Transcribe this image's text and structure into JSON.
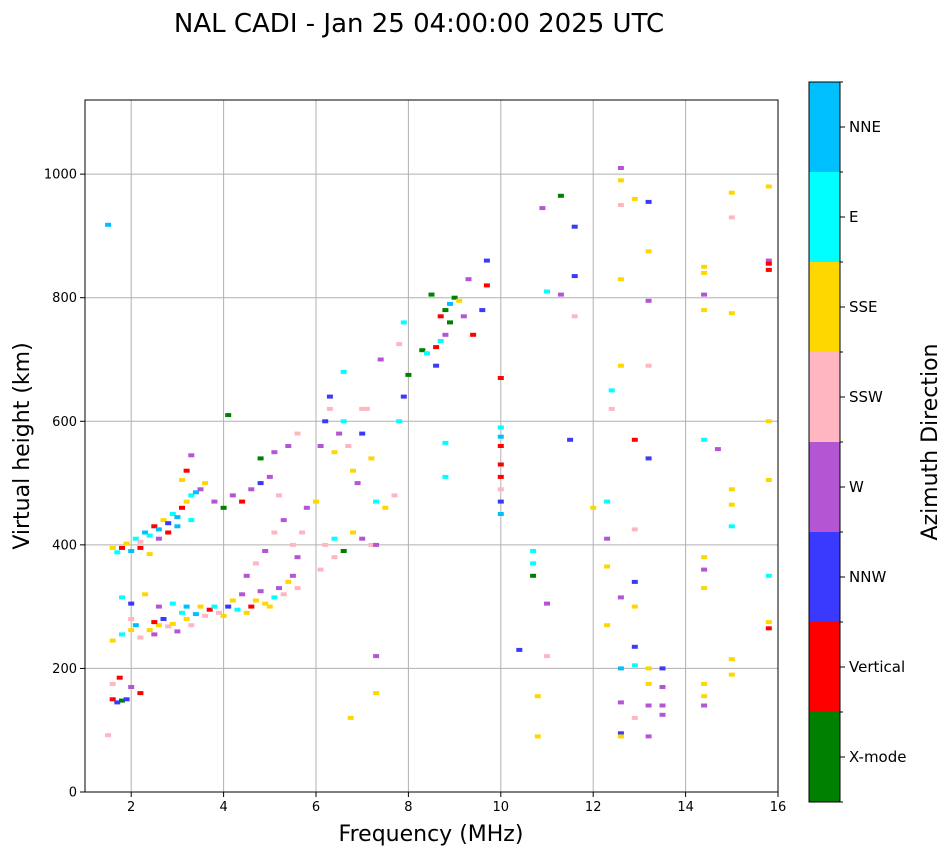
{
  "chart_data": {
    "type": "scatter",
    "title": "NAL CADI - Jan 25 04:00:00 2025 UTC",
    "xlabel": "Frequency (MHz)",
    "ylabel": "Virtual height (km)",
    "xlim": [
      1,
      16
    ],
    "ylim": [
      0,
      1120
    ],
    "xticks": [
      2,
      4,
      6,
      8,
      10,
      12,
      14,
      16
    ],
    "yticks": [
      0,
      200,
      400,
      600,
      800,
      1000
    ],
    "grid": true,
    "colorbar": {
      "label": "Azimuth Direction",
      "categories": [
        {
          "name": "X-mode",
          "color": "#008000"
        },
        {
          "name": "Vertical",
          "color": "#ff0000"
        },
        {
          "name": "NNW",
          "color": "#3a3aff"
        },
        {
          "name": "W",
          "color": "#b455d4"
        },
        {
          "name": "SSW",
          "color": "#ffb6c1"
        },
        {
          "name": "SSE",
          "color": "#ffd700"
        },
        {
          "name": "E",
          "color": "#00ffff"
        },
        {
          "name": "NNE",
          "color": "#00bfff"
        }
      ]
    },
    "points": [
      [
        1.5,
        918,
        "NNE"
      ],
      [
        1.5,
        92,
        "SSW"
      ],
      [
        1.6,
        175,
        "SSW"
      ],
      [
        1.6,
        150,
        "Vertical"
      ],
      [
        1.7,
        145,
        "NNW"
      ],
      [
        1.75,
        185,
        "Vertical"
      ],
      [
        1.8,
        148,
        "X-mode"
      ],
      [
        1.9,
        150,
        "NNW"
      ],
      [
        2.0,
        170,
        "W"
      ],
      [
        2.2,
        160,
        "Vertical"
      ],
      [
        1.6,
        395,
        "SSE"
      ],
      [
        1.7,
        388,
        "E"
      ],
      [
        1.8,
        395,
        "Vertical"
      ],
      [
        1.9,
        402,
        "SSE"
      ],
      [
        2.0,
        390,
        "NNE"
      ],
      [
        2.1,
        410,
        "E"
      ],
      [
        2.2,
        405,
        "SSW"
      ],
      [
        2.3,
        420,
        "NNE"
      ],
      [
        2.4,
        415,
        "E"
      ],
      [
        2.5,
        430,
        "Vertical"
      ],
      [
        2.6,
        425,
        "NNE"
      ],
      [
        2.7,
        440,
        "SSE"
      ],
      [
        2.8,
        435,
        "NNW"
      ],
      [
        2.9,
        450,
        "E"
      ],
      [
        3.0,
        445,
        "NNE"
      ],
      [
        3.1,
        460,
        "Vertical"
      ],
      [
        3.2,
        470,
        "SSE"
      ],
      [
        3.3,
        480,
        "E"
      ],
      [
        3.4,
        485,
        "NNE"
      ],
      [
        3.5,
        490,
        "W"
      ],
      [
        3.6,
        500,
        "SSE"
      ],
      [
        3.2,
        520,
        "Vertical"
      ],
      [
        3.3,
        545,
        "W"
      ],
      [
        3.1,
        505,
        "SSE"
      ],
      [
        2.2,
        395,
        "Vertical"
      ],
      [
        2.4,
        385,
        "SSE"
      ],
      [
        2.6,
        410,
        "W"
      ],
      [
        2.8,
        420,
        "Vertical"
      ],
      [
        3.0,
        430,
        "NNE"
      ],
      [
        3.3,
        440,
        "E"
      ],
      [
        1.6,
        245,
        "SSE"
      ],
      [
        1.8,
        255,
        "E"
      ],
      [
        2.0,
        262,
        "SSE"
      ],
      [
        2.1,
        270,
        "NNE"
      ],
      [
        2.2,
        250,
        "SSW"
      ],
      [
        2.4,
        262,
        "SSE"
      ],
      [
        2.5,
        255,
        "W"
      ],
      [
        2.6,
        270,
        "SSE"
      ],
      [
        2.7,
        280,
        "NNW"
      ],
      [
        2.8,
        268,
        "SSW"
      ],
      [
        2.9,
        272,
        "SSE"
      ],
      [
        3.0,
        260,
        "W"
      ],
      [
        3.1,
        290,
        "E"
      ],
      [
        3.2,
        280,
        "SSE"
      ],
      [
        3.3,
        270,
        "SSW"
      ],
      [
        3.4,
        288,
        "NNE"
      ],
      [
        3.5,
        300,
        "SSE"
      ],
      [
        3.6,
        285,
        "SSW"
      ],
      [
        3.7,
        295,
        "Vertical"
      ],
      [
        3.8,
        300,
        "E"
      ],
      [
        3.9,
        290,
        "SSW"
      ],
      [
        4.0,
        285,
        "SSE"
      ],
      [
        4.1,
        300,
        "NNW"
      ],
      [
        4.2,
        310,
        "SSE"
      ],
      [
        4.3,
        295,
        "E"
      ],
      [
        4.4,
        320,
        "W"
      ],
      [
        4.5,
        290,
        "SSE"
      ],
      [
        4.6,
        300,
        "Vertical"
      ],
      [
        4.7,
        310,
        "SSE"
      ],
      [
        4.8,
        325,
        "W"
      ],
      [
        4.9,
        305,
        "SSE"
      ],
      [
        5.0,
        300,
        "SSE"
      ],
      [
        5.1,
        315,
        "E"
      ],
      [
        5.2,
        330,
        "W"
      ],
      [
        5.3,
        320,
        "SSW"
      ],
      [
        5.4,
        340,
        "SSE"
      ],
      [
        5.5,
        350,
        "W"
      ],
      [
        5.6,
        330,
        "SSW"
      ],
      [
        1.8,
        315,
        "E"
      ],
      [
        2.0,
        305,
        "NNW"
      ],
      [
        2.3,
        320,
        "SSE"
      ],
      [
        2.6,
        300,
        "W"
      ],
      [
        2.9,
        305,
        "E"
      ],
      [
        3.2,
        300,
        "NNE"
      ],
      [
        2.0,
        280,
        "SSW"
      ],
      [
        2.5,
        275,
        "Vertical"
      ],
      [
        3.8,
        470,
        "W"
      ],
      [
        4.0,
        460,
        "X-mode"
      ],
      [
        4.2,
        480,
        "W"
      ],
      [
        4.4,
        470,
        "Vertical"
      ],
      [
        4.6,
        490,
        "W"
      ],
      [
        4.8,
        500,
        "NNW"
      ],
      [
        5.0,
        510,
        "W"
      ],
      [
        5.2,
        480,
        "SSW"
      ],
      [
        4.5,
        350,
        "W"
      ],
      [
        4.7,
        370,
        "SSW"
      ],
      [
        4.9,
        390,
        "W"
      ],
      [
        5.1,
        420,
        "SSW"
      ],
      [
        5.3,
        440,
        "W"
      ],
      [
        5.5,
        400,
        "SSW"
      ],
      [
        5.6,
        380,
        "W"
      ],
      [
        5.7,
        420,
        "SSW"
      ],
      [
        5.8,
        460,
        "W"
      ],
      [
        4.8,
        540,
        "X-mode"
      ],
      [
        5.4,
        560,
        "W"
      ],
      [
        5.6,
        580,
        "SSW"
      ],
      [
        4.1,
        610,
        "X-mode"
      ],
      [
        5.1,
        550,
        "W"
      ],
      [
        6.0,
        470,
        "SSE"
      ],
      [
        6.1,
        560,
        "W"
      ],
      [
        6.2,
        600,
        "NNW"
      ],
      [
        6.3,
        620,
        "SSW"
      ],
      [
        6.4,
        550,
        "SSE"
      ],
      [
        6.5,
        580,
        "W"
      ],
      [
        6.6,
        600,
        "E"
      ],
      [
        6.7,
        560,
        "SSW"
      ],
      [
        6.8,
        520,
        "SSE"
      ],
      [
        6.9,
        500,
        "W"
      ],
      [
        7.0,
        580,
        "NNW"
      ],
      [
        7.1,
        620,
        "SSW"
      ],
      [
        7.2,
        540,
        "SSE"
      ],
      [
        7.3,
        470,
        "E"
      ],
      [
        7.5,
        460,
        "SSE"
      ],
      [
        7.7,
        480,
        "SSW"
      ],
      [
        7.8,
        600,
        "E"
      ],
      [
        7.9,
        640,
        "NNW"
      ],
      [
        6.2,
        400,
        "SSW"
      ],
      [
        6.4,
        410,
        "E"
      ],
      [
        6.6,
        390,
        "X-mode"
      ],
      [
        6.8,
        420,
        "SSE"
      ],
      [
        7.0,
        410,
        "W"
      ],
      [
        7.2,
        400,
        "SSW"
      ],
      [
        6.4,
        380,
        "SSW"
      ],
      [
        6.1,
        360,
        "SSW"
      ],
      [
        6.3,
        640,
        "NNW"
      ],
      [
        6.6,
        680,
        "E"
      ],
      [
        7.0,
        620,
        "SSW"
      ],
      [
        7.4,
        700,
        "W"
      ],
      [
        7.8,
        725,
        "SSW"
      ],
      [
        7.9,
        760,
        "E"
      ],
      [
        8.0,
        675,
        "X-mode"
      ],
      [
        7.3,
        400,
        "W"
      ],
      [
        6.75,
        120,
        "SSE"
      ],
      [
        7.3,
        160,
        "SSE"
      ],
      [
        7.3,
        220,
        "W"
      ],
      [
        8.3,
        715,
        "X-mode"
      ],
      [
        8.4,
        710,
        "E"
      ],
      [
        8.6,
        720,
        "Vertical"
      ],
      [
        8.7,
        730,
        "E"
      ],
      [
        8.8,
        740,
        "W"
      ],
      [
        8.9,
        760,
        "X-mode"
      ],
      [
        8.6,
        690,
        "NNW"
      ],
      [
        8.7,
        770,
        "Vertical"
      ],
      [
        8.8,
        780,
        "X-mode"
      ],
      [
        8.9,
        790,
        "NNE"
      ],
      [
        9.0,
        800,
        "X-mode"
      ],
      [
        9.2,
        770,
        "W"
      ],
      [
        9.3,
        830,
        "W"
      ],
      [
        9.4,
        740,
        "Vertical"
      ],
      [
        9.6,
        780,
        "NNW"
      ],
      [
        9.7,
        860,
        "NNW"
      ],
      [
        9.7,
        820,
        "Vertical"
      ],
      [
        8.8,
        565,
        "E"
      ],
      [
        8.8,
        510,
        "E"
      ],
      [
        8.5,
        805,
        "X-mode"
      ],
      [
        9.1,
        795,
        "SSE"
      ],
      [
        10.0,
        590,
        "E"
      ],
      [
        10.0,
        560,
        "Vertical"
      ],
      [
        10.0,
        530,
        "Vertical"
      ],
      [
        10.0,
        510,
        "Vertical"
      ],
      [
        10.0,
        490,
        "SSW"
      ],
      [
        10.0,
        470,
        "NNW"
      ],
      [
        10.0,
        450,
        "NNE"
      ],
      [
        10.0,
        670,
        "Vertical"
      ],
      [
        10.0,
        575,
        "NNE"
      ],
      [
        10.4,
        230,
        "NNW"
      ],
      [
        10.7,
        390,
        "E"
      ],
      [
        10.7,
        350,
        "X-mode"
      ],
      [
        10.7,
        370,
        "E"
      ],
      [
        10.8,
        90,
        "SSE"
      ],
      [
        10.8,
        155,
        "SSE"
      ],
      [
        10.9,
        945,
        "W"
      ],
      [
        11.0,
        305,
        "W"
      ],
      [
        11.0,
        220,
        "SSW"
      ],
      [
        11.0,
        810,
        "E"
      ],
      [
        11.3,
        805,
        "W"
      ],
      [
        11.3,
        965,
        "X-mode"
      ],
      [
        11.5,
        570,
        "NNW"
      ],
      [
        11.6,
        770,
        "SSW"
      ],
      [
        11.6,
        915,
        "NNW"
      ],
      [
        11.6,
        835,
        "NNW"
      ],
      [
        12.0,
        460,
        "SSE"
      ],
      [
        12.3,
        470,
        "E"
      ],
      [
        12.3,
        410,
        "W"
      ],
      [
        12.3,
        365,
        "SSE"
      ],
      [
        12.3,
        270,
        "SSE"
      ],
      [
        12.4,
        650,
        "E"
      ],
      [
        12.4,
        620,
        "SSW"
      ],
      [
        12.6,
        1010,
        "W"
      ],
      [
        12.6,
        990,
        "SSE"
      ],
      [
        12.6,
        950,
        "SSW"
      ],
      [
        12.6,
        830,
        "SSE"
      ],
      [
        12.6,
        690,
        "SSE"
      ],
      [
        12.6,
        315,
        "W"
      ],
      [
        12.6,
        200,
        "NNE"
      ],
      [
        12.6,
        145,
        "W"
      ],
      [
        12.6,
        95,
        "NNW"
      ],
      [
        12.6,
        90,
        "SSE"
      ],
      [
        12.9,
        960,
        "SSE"
      ],
      [
        12.9,
        570,
        "Vertical"
      ],
      [
        12.9,
        425,
        "SSW"
      ],
      [
        12.9,
        340,
        "NNW"
      ],
      [
        12.9,
        300,
        "SSE"
      ],
      [
        12.9,
        235,
        "NNW"
      ],
      [
        12.9,
        205,
        "E"
      ],
      [
        12.9,
        120,
        "SSW"
      ],
      [
        13.2,
        955,
        "NNW"
      ],
      [
        13.2,
        875,
        "SSE"
      ],
      [
        13.2,
        795,
        "W"
      ],
      [
        13.2,
        690,
        "SSW"
      ],
      [
        13.2,
        540,
        "NNW"
      ],
      [
        13.2,
        200,
        "SSE"
      ],
      [
        13.2,
        175,
        "SSE"
      ],
      [
        13.2,
        140,
        "W"
      ],
      [
        13.2,
        90,
        "W"
      ],
      [
        13.5,
        200,
        "NNW"
      ],
      [
        13.5,
        170,
        "W"
      ],
      [
        13.5,
        140,
        "W"
      ],
      [
        13.5,
        125,
        "W"
      ],
      [
        14.4,
        850,
        "SSE"
      ],
      [
        14.4,
        840,
        "SSE"
      ],
      [
        14.4,
        805,
        "W"
      ],
      [
        14.4,
        780,
        "SSE"
      ],
      [
        14.4,
        570,
        "E"
      ],
      [
        14.4,
        380,
        "SSE"
      ],
      [
        14.4,
        360,
        "W"
      ],
      [
        14.4,
        330,
        "SSE"
      ],
      [
        14.4,
        175,
        "SSE"
      ],
      [
        14.4,
        155,
        "SSE"
      ],
      [
        14.4,
        140,
        "W"
      ],
      [
        14.7,
        555,
        "W"
      ],
      [
        15.0,
        970,
        "SSE"
      ],
      [
        15.0,
        930,
        "SSW"
      ],
      [
        15.0,
        775,
        "SSE"
      ],
      [
        15.0,
        490,
        "SSE"
      ],
      [
        15.0,
        465,
        "SSE"
      ],
      [
        15.0,
        430,
        "E"
      ],
      [
        15.0,
        215,
        "SSE"
      ],
      [
        15.0,
        190,
        "SSE"
      ],
      [
        15.8,
        980,
        "SSE"
      ],
      [
        15.8,
        860,
        "W"
      ],
      [
        15.8,
        855,
        "Vertical"
      ],
      [
        15.8,
        845,
        "Vertical"
      ],
      [
        15.8,
        600,
        "SSE"
      ],
      [
        15.8,
        505,
        "SSE"
      ],
      [
        15.8,
        350,
        "E"
      ],
      [
        15.8,
        275,
        "SSE"
      ],
      [
        15.8,
        265,
        "Vertical"
      ]
    ]
  }
}
